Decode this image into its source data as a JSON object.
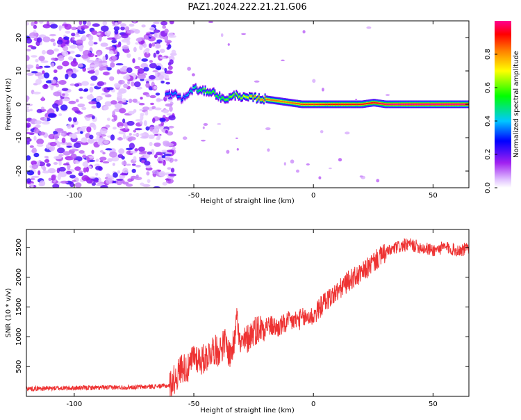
{
  "title": "PAZ1.2024.222.21.21.G06",
  "chart_data": [
    {
      "type": "heatmap",
      "xlabel": "Height of straight line (km)",
      "ylabel": "Frequency (Hz)",
      "xlim": [
        -120,
        65
      ],
      "ylim": [
        -25,
        25
      ],
      "xticks": [
        -100,
        -50,
        0,
        50
      ],
      "yticks": [
        -20,
        -10,
        0,
        10,
        20
      ],
      "colorbar": {
        "label": "Normalized spectral amplitude",
        "range": [
          0,
          1
        ],
        "ticks": [
          0.0,
          0.2,
          0.4,
          0.6,
          0.8
        ],
        "colors": [
          "#ffffff",
          "#a020f0",
          "#0000ff",
          "#00c8ff",
          "#00ff00",
          "#ffff00",
          "#ff8000",
          "#ff0000",
          "#ff0090"
        ]
      },
      "ridge": {
        "x": [
          -62,
          -58,
          -55,
          -52,
          -50,
          -48,
          -45,
          -42,
          -40,
          -38,
          -35,
          -32,
          -30,
          -25,
          -20,
          -15,
          -10,
          -5,
          0,
          10,
          20,
          25,
          30,
          40,
          50,
          65
        ],
        "y": [
          3.0,
          3.0,
          1.5,
          3.5,
          5.0,
          4.0,
          4.0,
          3.5,
          2.5,
          1.5,
          2.0,
          3.0,
          2.0,
          2.0,
          1.5,
          1.0,
          0.5,
          0.0,
          0.0,
          0.0,
          0.0,
          0.5,
          0.0,
          0.0,
          0.0,
          0.0
        ],
        "amplitude": [
          0.3,
          0.35,
          0.3,
          0.4,
          0.45,
          0.5,
          0.55,
          0.55,
          0.5,
          0.55,
          0.6,
          0.6,
          0.65,
          0.75,
          0.8,
          0.8,
          0.8,
          0.85,
          0.85,
          0.9,
          0.9,
          0.9,
          0.95,
          1.0,
          1.0,
          1.0
        ]
      },
      "noise_region_x": [
        -120,
        -60
      ]
    },
    {
      "type": "line",
      "xlabel": "Height of straight line (km)",
      "ylabel": "SNR (10 * v/v)",
      "xlim": [
        -120,
        65
      ],
      "ylim": [
        0,
        2800
      ],
      "xticks": [
        -100,
        -50,
        0,
        50
      ],
      "yticks": [
        500,
        1000,
        1500,
        2000,
        2500
      ],
      "color": "#ee3333",
      "series": [
        {
          "x": [
            -120,
            -110,
            -100,
            -90,
            -80,
            -70,
            -65,
            -60,
            -57,
            -55,
            -52,
            -50,
            -47,
            -45,
            -42,
            -40,
            -37,
            -35,
            -33,
            -32,
            -31,
            -30,
            -27,
            -25,
            -22,
            -20,
            -15,
            -10,
            -5,
            0,
            5,
            10,
            15,
            20,
            25,
            30,
            35,
            40,
            45,
            50,
            55,
            60,
            65
          ],
          "y": [
            130,
            135,
            140,
            145,
            150,
            160,
            170,
            180,
            350,
            500,
            450,
            700,
            600,
            650,
            800,
            750,
            900,
            700,
            900,
            1600,
            900,
            850,
            1000,
            1100,
            1150,
            1200,
            1150,
            1250,
            1300,
            1350,
            1600,
            1750,
            1950,
            2050,
            2250,
            2400,
            2500,
            2550,
            2500,
            2450,
            2500,
            2450,
            2480
          ]
        }
      ]
    }
  ]
}
